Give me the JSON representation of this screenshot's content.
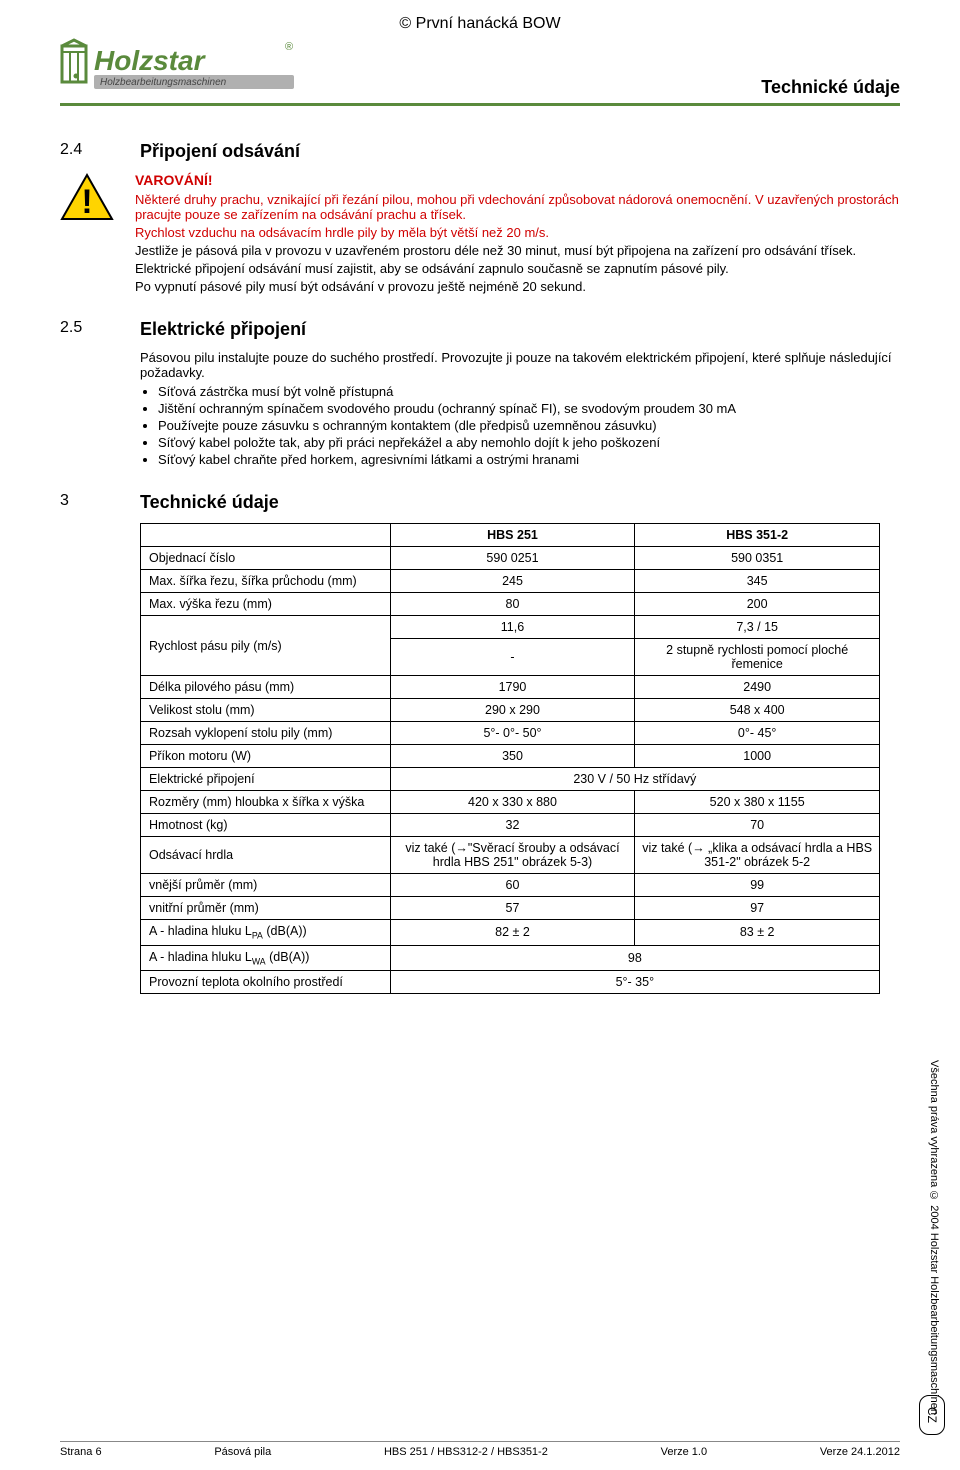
{
  "header": {
    "copyright": "© První hanácká BOW",
    "pageTitle": "Technické údaje"
  },
  "logo": {
    "brand": "Holzstar",
    "reg": "®",
    "tagline": "Holzbearbeitungsmaschinen",
    "colors": {
      "green": "#5a8a3c",
      "gray": "#b0b0b0",
      "textGray": "#888"
    }
  },
  "section24": {
    "num": "2.4",
    "title": "Připojení odsávání"
  },
  "warning": {
    "head": "VAROVÁNÍ!",
    "p1": "Některé druhy prachu, vznikající při řezání pilou, mohou při vdechování způsobovat nádorová onemocnění. V uzavřených prostorách pracujte pouze se zařízením na odsávání prachu a třísek.",
    "p2": "Rychlost vzduchu na odsávacím hrdle pily by měla být větší než 20 m/s.",
    "p3": "Jestliže je pásová pila v provozu v uzavřeném prostoru déle než 30 minut, musí být připojena na zařízení pro odsávání třísek.",
    "p4": "Elektrické připojení odsávání musí zajistit, aby se odsávání zapnulo současně se zapnutím pásové pily.",
    "p5": "Po vypnutí pásové pily musí být odsávání v provozu ještě nejméně 20 sekund."
  },
  "section25": {
    "num": "2.5",
    "title": "Elektrické připojení",
    "intro": "Pásovou pilu instalujte pouze do suchého prostředí. Provozujte ji pouze na takovém elektrickém připojení, které splňuje následující požadavky.",
    "bullets": [
      "Síťová zástrčka musí být volně přístupná",
      "Jištění ochranným spínačem svodového proudu (ochranný spínač FI), se svodovým proudem 30 mA",
      "Používejte pouze zásuvku s ochranným kontaktem (dle předpisů uzemněnou zásuvku)",
      "Síťový kabel položte tak, aby při práci nepřekážel a aby nemohlo dojít k jeho poškození",
      "Síťový kabel chraňte před horkem, agresivními látkami a ostrými hranami"
    ]
  },
  "section3": {
    "num": "3",
    "title": "Technické údaje"
  },
  "table": {
    "columns": [
      "",
      "HBS 251",
      "HBS 351-2"
    ],
    "rows": [
      {
        "label": "Objednací číslo",
        "c1": "590 0251",
        "c2": "590 0351"
      },
      {
        "label": "Max. šířka řezu, šířka průchodu (mm)",
        "c1": "245",
        "c2": "345"
      },
      {
        "label": "Max. výška řezu (mm)",
        "c1": "80",
        "c2": "200"
      },
      {
        "label": "Rychlost pásu pily (m/s)",
        "c1a": "11,6",
        "c1b": "-",
        "c2a": "7,3 / 15",
        "c2b": "2 stupně rychlosti pomocí ploché řemenice",
        "split": true
      },
      {
        "label": "Délka pilového pásu (mm)",
        "c1": "1790",
        "c2": "2490"
      },
      {
        "label": "Velikost stolu (mm)",
        "c1": "290 x 290",
        "c2": "548 x 400"
      },
      {
        "label": "Rozsah vyklopení stolu pily (mm)",
        "c1": "5°- 0°- 50°",
        "c2": "0°- 45°"
      },
      {
        "label": "Příkon motoru (W)",
        "c1": "350",
        "c2": "1000"
      },
      {
        "label": "Elektrické připojení",
        "span": "230 V / 50 Hz střídavý"
      },
      {
        "label": "Rozměry (mm)\nhloubka x šířka x výška",
        "c1": "420 x 330 x 880",
        "c2": "520 x 380 x 1155"
      },
      {
        "label": "Hmotnost (kg)",
        "c1": "32",
        "c2": "70"
      },
      {
        "label": "Odsávací hrdla",
        "c1": "viz také (→\"Svěrací šrouby a odsávací hrdla HBS 251\" obrázek 5-3)",
        "c2": "viz také (→ „klika a odsávací hrdla a HBS 351-2\" obrázek 5-2"
      },
      {
        "label": "vnější průměr (mm)",
        "c1": "60",
        "c2": "99"
      },
      {
        "label": "vnitřní průměr (mm)",
        "c1": "57",
        "c2": "97"
      },
      {
        "label": "A - hladina hluku L<sub>PA</sub> (dB(A))",
        "c1": "82 ± 2",
        "c2": "83 ± 2",
        "html": true
      },
      {
        "label": "A - hladina hluku L<sub>WA</sub> (dB(A))",
        "span": "98",
        "html": true
      },
      {
        "label": "Provozní teplota okolního prostředí",
        "span": "5°- 35°"
      }
    ]
  },
  "side": "Všechna práva vyhrazena © 2004 Holzstar Holzbearbeitungsmaschinen",
  "cz": "CZ",
  "footer": {
    "left": "Strana 6",
    "mid1": "Pásová pila",
    "mid2": "HBS 251 / HBS312-2 / HBS351-2",
    "mid3": "Verze 1.0",
    "right": "Verze 24.1.2012"
  }
}
